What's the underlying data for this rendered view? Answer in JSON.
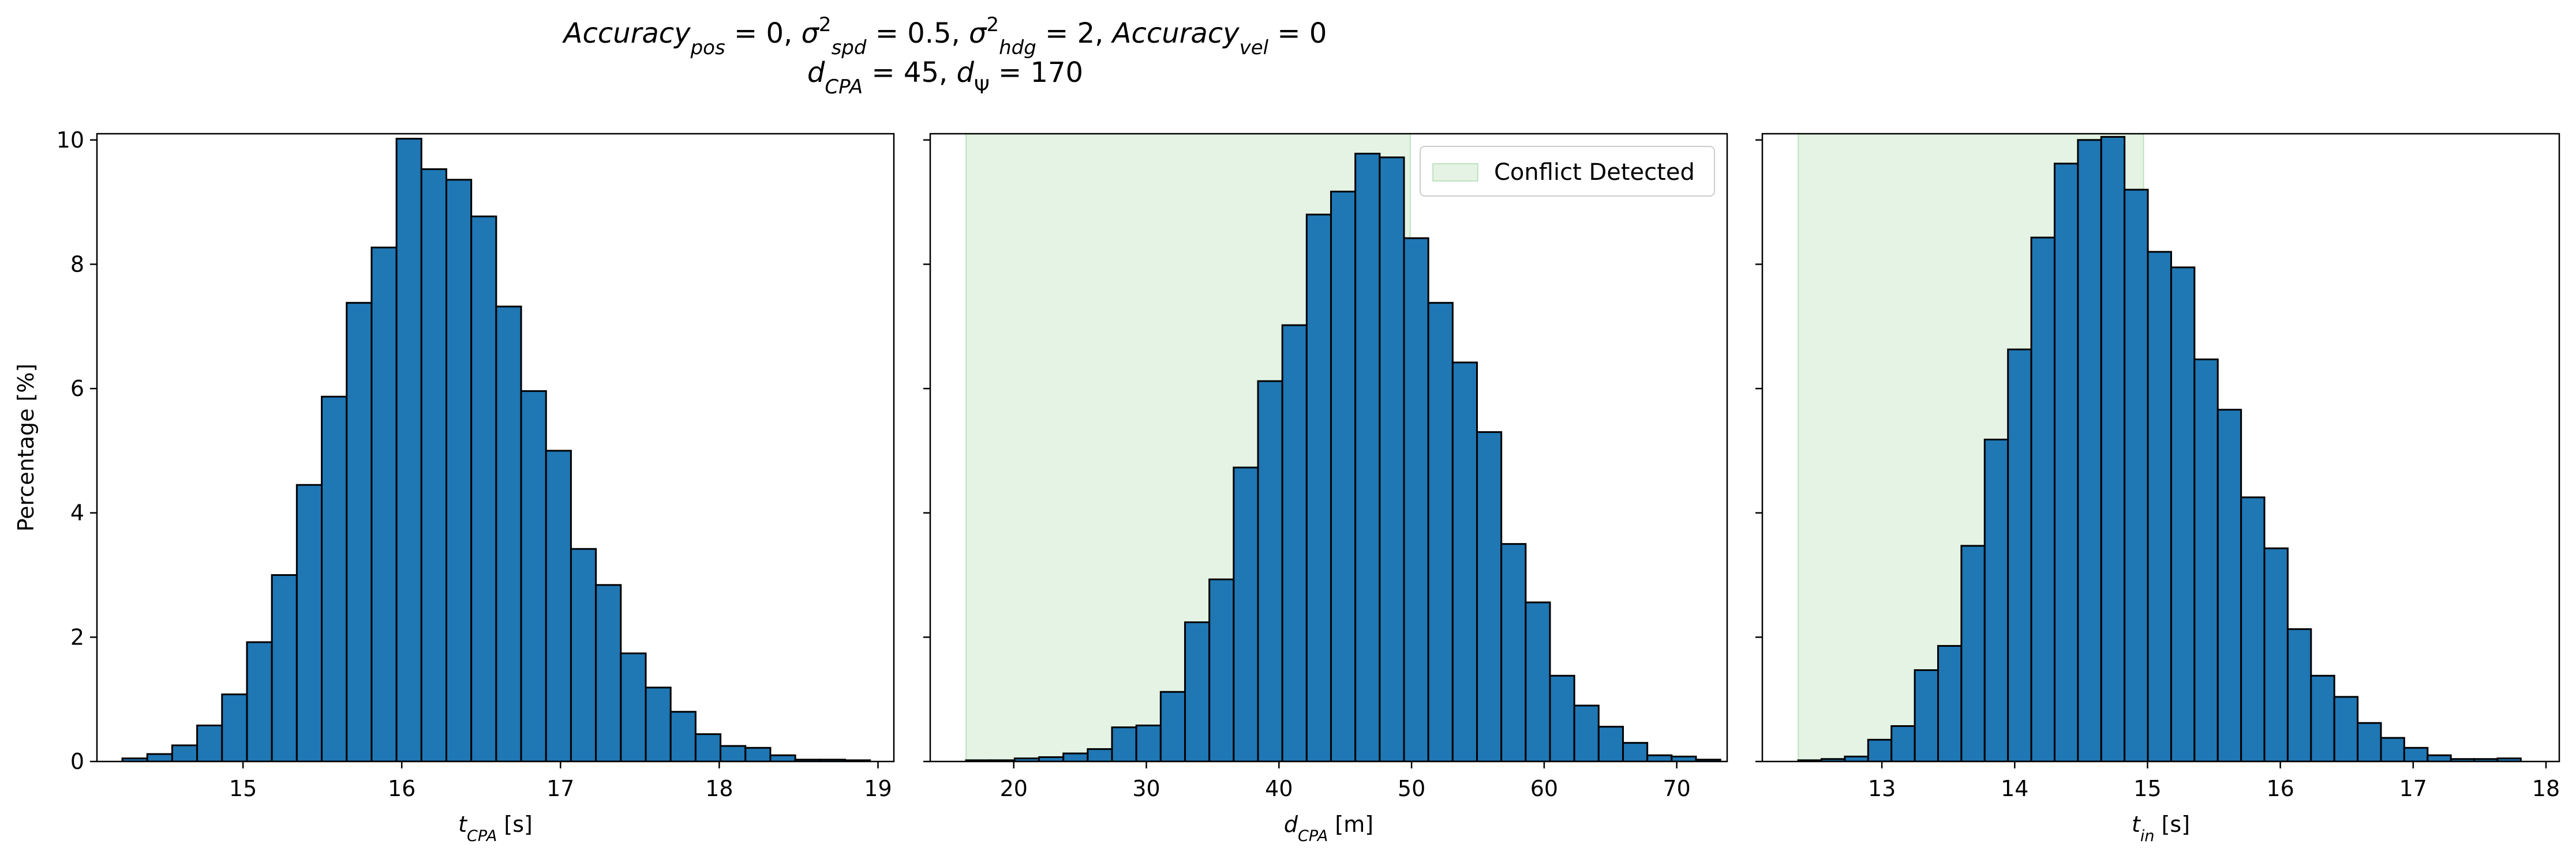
{
  "title": {
    "line1": [
      {
        "t": "Accuracy",
        "i": true
      },
      {
        "t": "pos",
        "i": true,
        "sub": true
      },
      {
        "t": " = 0, "
      },
      {
        "t": "σ",
        "i": true
      },
      {
        "t": "2",
        "sup": true
      },
      {
        "t": "spd",
        "i": true,
        "sub": true
      },
      {
        "t": " = 0.5, "
      },
      {
        "t": "σ",
        "i": true
      },
      {
        "t": "2",
        "sup": true
      },
      {
        "t": "hdg",
        "i": true,
        "sub": true
      },
      {
        "t": " = 2, "
      },
      {
        "t": "Accuracy",
        "i": true
      },
      {
        "t": "vel",
        "i": true,
        "sub": true
      },
      {
        "t": " = 0"
      }
    ],
    "line2": [
      {
        "t": "d",
        "i": true
      },
      {
        "t": "CPA",
        "i": true,
        "sub": true
      },
      {
        "t": " = 45, "
      },
      {
        "t": "d",
        "i": true
      },
      {
        "t": "Ψ",
        "sub": true
      },
      {
        "t": " = 170"
      }
    ]
  },
  "colors": {
    "bar_fill": "#1f77b4",
    "bar_edge": "#000000",
    "conflict_fill": "#2ca02c",
    "conflict_opacity": 0.13
  },
  "chart_data": [
    {
      "type": "bar",
      "xlabel": [
        {
          "t": "t",
          "i": true
        },
        {
          "t": "CPA",
          "i": true,
          "sub": true
        },
        {
          "t": " [s]"
        }
      ],
      "ylabel": "Percentage [%]",
      "xlim": [
        14.08,
        19.1
      ],
      "ylim": [
        0,
        10.1
      ],
      "xticks": [
        15,
        16,
        17,
        18,
        19
      ],
      "yticks": [
        0,
        2,
        4,
        6,
        8,
        10
      ],
      "bin_start": 14.24,
      "bin_width": 0.157,
      "values": [
        0.05,
        0.12,
        0.26,
        0.58,
        1.08,
        1.92,
        3.0,
        4.45,
        5.87,
        7.38,
        8.27,
        10.02,
        9.53,
        9.36,
        8.77,
        7.32,
        5.96,
        5.0,
        3.42,
        2.84,
        1.74,
        1.19,
        0.8,
        0.44,
        0.25,
        0.22,
        0.1,
        0.03,
        0.03,
        0.02
      ]
    },
    {
      "type": "bar",
      "xlabel": [
        {
          "t": "d",
          "i": true
        },
        {
          "t": "CPA",
          "i": true,
          "sub": true
        },
        {
          "t": " [m]"
        }
      ],
      "ylabel": "",
      "xlim": [
        13.7,
        73.8
      ],
      "ylim": [
        0,
        10.1
      ],
      "xticks": [
        20,
        30,
        40,
        50,
        60,
        70
      ],
      "yticks": [
        0,
        2,
        4,
        6,
        8,
        10
      ],
      "bin_start": 16.4,
      "bin_width": 1.835,
      "values": [
        0.02,
        0.02,
        0.05,
        0.07,
        0.13,
        0.2,
        0.55,
        0.58,
        1.12,
        2.24,
        2.93,
        4.73,
        6.12,
        7.02,
        8.8,
        9.17,
        9.78,
        9.72,
        8.42,
        7.38,
        6.42,
        5.3,
        3.5,
        2.56,
        1.38,
        0.9,
        0.56,
        0.3,
        0.1,
        0.08,
        0.03
      ],
      "conflict_region": [
        16.4,
        49.9
      ],
      "legend": "Conflict Detected",
      "legend_loc": "upper right"
    },
    {
      "type": "bar",
      "xlabel": [
        {
          "t": "t",
          "i": true
        },
        {
          "t": "in",
          "i": true,
          "sub": true
        },
        {
          "t": " [s]"
        }
      ],
      "ylabel": "",
      "xlim": [
        12.1,
        18.1
      ],
      "ylim": [
        0,
        10.1
      ],
      "xticks": [
        13,
        14,
        15,
        16,
        17,
        18
      ],
      "yticks": [
        0,
        2,
        4,
        6,
        8,
        10
      ],
      "bin_start": 12.37,
      "bin_width": 0.1755,
      "values": [
        0.02,
        0.04,
        0.08,
        0.35,
        0.57,
        1.47,
        1.86,
        3.47,
        5.18,
        6.63,
        8.43,
        9.62,
        10.0,
        10.05,
        9.2,
        8.2,
        7.95,
        6.47,
        5.66,
        4.25,
        3.43,
        2.13,
        1.38,
        1.04,
        0.62,
        0.38,
        0.22,
        0.1,
        0.04,
        0.04,
        0.05
      ],
      "conflict_region": [
        12.37,
        14.97
      ]
    }
  ]
}
